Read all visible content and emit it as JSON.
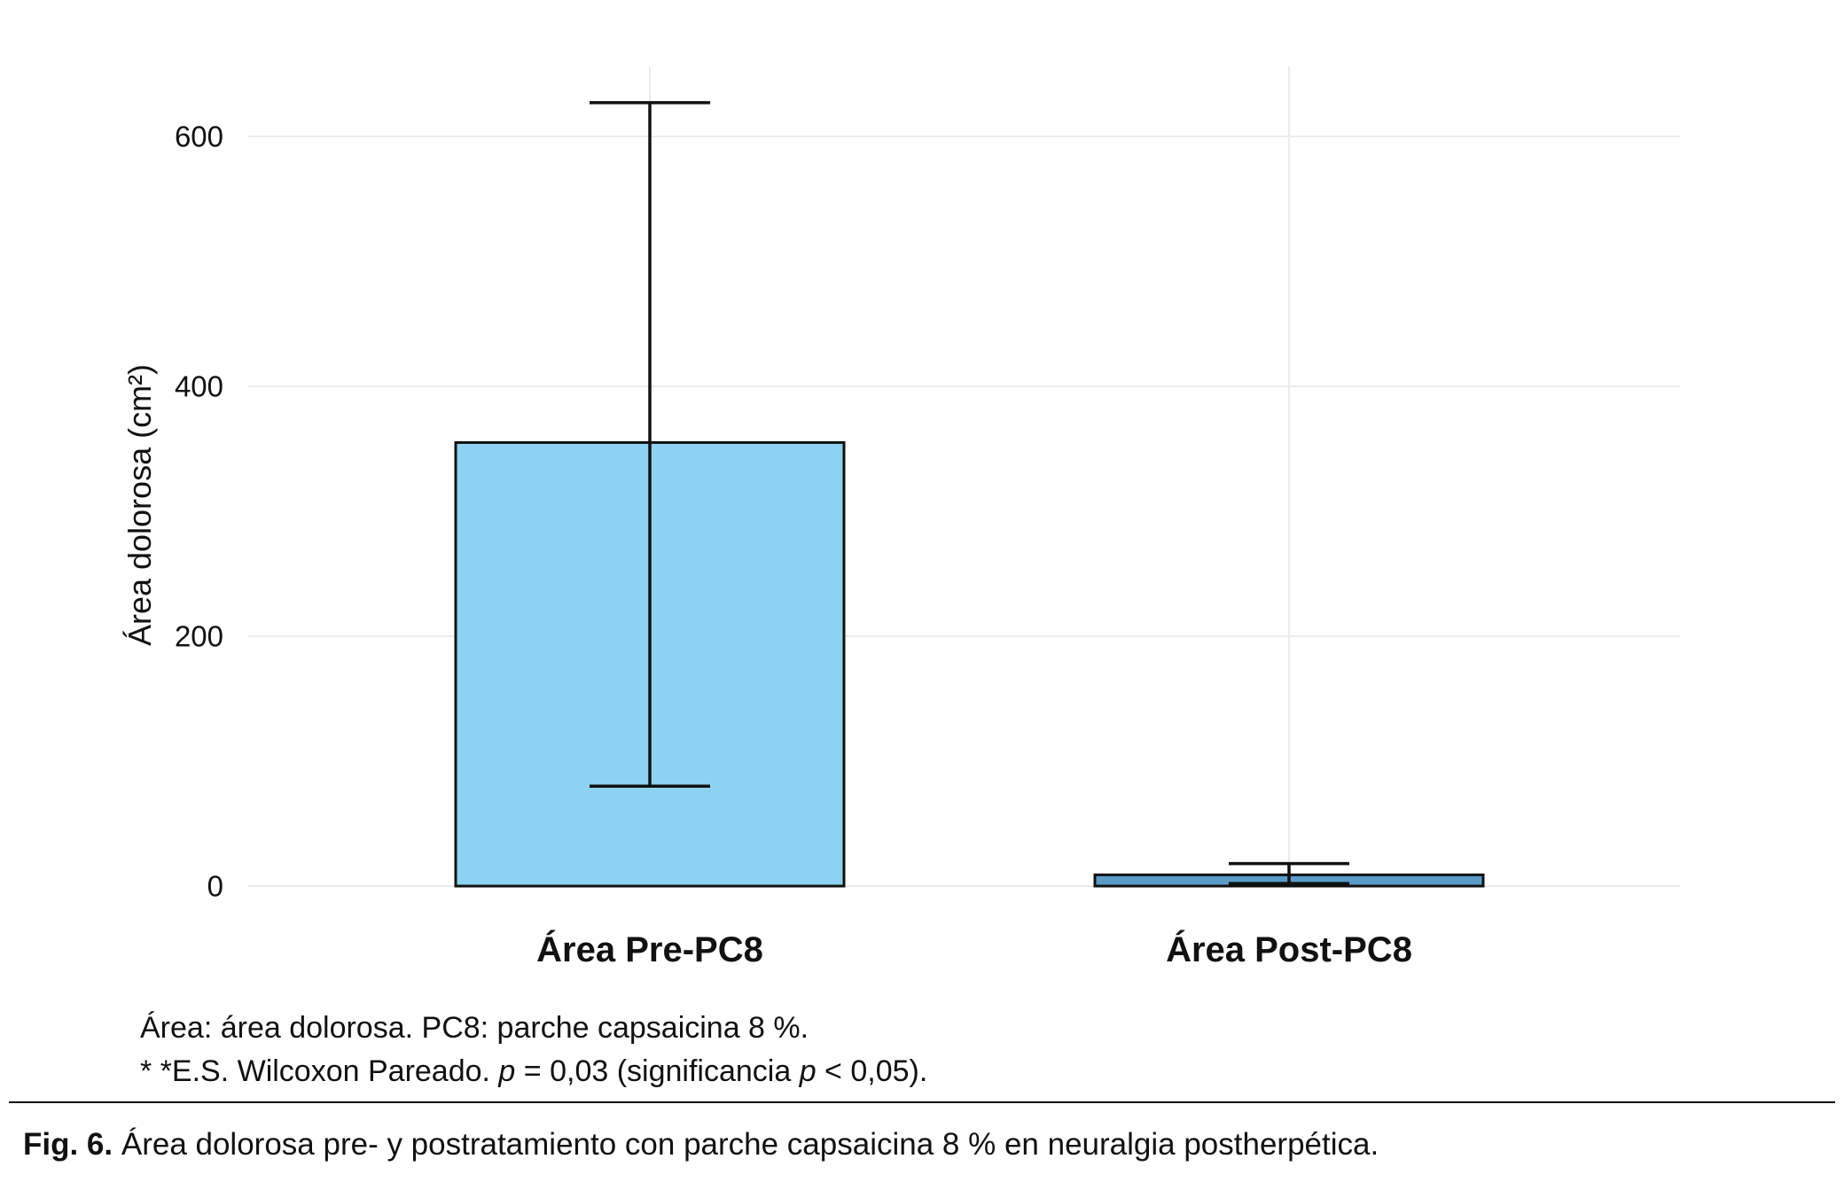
{
  "chart_data": {
    "type": "bar",
    "categories": [
      "Área Pre-PC8",
      "Área Post-PC8"
    ],
    "values": [
      355,
      9
    ],
    "error_low": [
      80,
      2
    ],
    "error_high": [
      627,
      18
    ],
    "bar_colors": [
      "#8DD2F0",
      "#5A9AC8"
    ],
    "bar_edge_color": "#111111",
    "grid_color": "#ebebeb",
    "title": "",
    "xlabel": "",
    "ylabel": "Área dolorosa (cm²)",
    "yticks": [
      0,
      200,
      400,
      600
    ],
    "ylim": [
      0,
      656
    ],
    "grid": "light gray horizontal lines at ticks and vertical lines at category centers",
    "legend": "none"
  },
  "footnotes": {
    "line1": "Área: área dolorosa. PC8: parche capsaicina 8 %.",
    "line2_parts": {
      "p1": "* *E.S. Wilcoxon Pareado. ",
      "p2": "p",
      "p3": " = 0,03 (significancia ",
      "p4": "p",
      "p5": " < 0,05)."
    }
  },
  "caption": {
    "label": "Fig. 6.",
    "text": " Área dolorosa pre- y postratamiento con parche capsaicina 8 % en neuralgia postherpética."
  }
}
